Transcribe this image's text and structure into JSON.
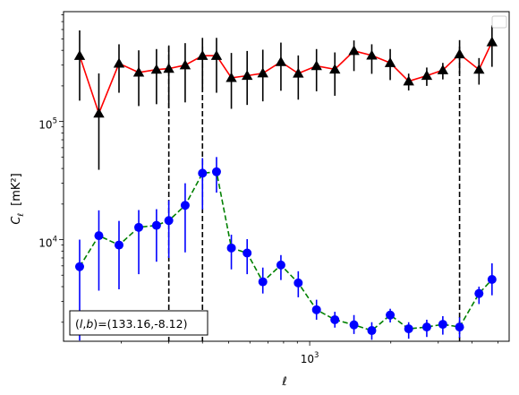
{
  "chart_data": {
    "type": "scatter",
    "xlabel": "ℓ",
    "ylabel_main": "C",
    "ylabel_sub": "ℓ",
    "ylabel_unit": "[mK²]",
    "x_scale": "log",
    "y_scale": "log",
    "xlim": [
      122,
      5500
    ],
    "ylim": [
      1380,
      850000
    ],
    "x_tick_labels": [
      {
        "value": 1000,
        "base": "10",
        "exp": "3"
      }
    ],
    "y_tick_labels": [
      {
        "value": 10000,
        "base": "10",
        "exp": "4"
      },
      {
        "value": 100000,
        "base": "10",
        "exp": "5"
      }
    ],
    "annotation": "(l, b)=(133.16,-8.12)",
    "annotation_parts": {
      "open": "(",
      "l": "l",
      "comma": ",",
      "b": "b",
      "close": ")",
      "value": "=(133.16,-8.12)"
    },
    "annotation_position": "bottom-left",
    "legend": "top-right, empty",
    "vlines": [
      300,
      400,
      3600
    ],
    "x": [
      140,
      165,
      196,
      232,
      270,
      300,
      345,
      400,
      451,
      512,
      586,
      670,
      782,
      907,
      1060,
      1240,
      1460,
      1700,
      1990,
      2330,
      2720,
      3120,
      3600,
      4250,
      4750
    ],
    "series": [
      {
        "color": "#ff0000",
        "marker_color": "#000000",
        "marker": "triangle",
        "line": "solid",
        "values": [
          360000,
          117000,
          310000,
          260000,
          275000,
          280000,
          300000,
          360000,
          360000,
          234000,
          244000,
          256000,
          319000,
          255000,
          295000,
          276000,
          396000,
          362000,
          313000,
          219000,
          244000,
          272000,
          371000,
          275000,
          470000
        ],
        "err_low": [
          150000,
          39000,
          175000,
          135000,
          140000,
          130000,
          145000,
          185000,
          175000,
          128000,
          138000,
          148000,
          182000,
          153000,
          180000,
          165000,
          267000,
          253000,
          224000,
          183000,
          200000,
          227000,
          253000,
          205000,
          290000
        ],
        "err_high": [
          590000,
          255000,
          450000,
          400000,
          410000,
          440000,
          460000,
          510000,
          510000,
          380000,
          395000,
          405000,
          465000,
          362000,
          410000,
          384000,
          485000,
          450000,
          410000,
          254000,
          286000,
          313000,
          488000,
          344000,
          650000
        ]
      },
      {
        "color": "#008000",
        "marker_color": "#0000ff",
        "marker": "circle",
        "line": "dashed",
        "values": [
          5900,
          10800,
          9000,
          12700,
          13200,
          14500,
          19500,
          36500,
          37500,
          8500,
          7700,
          4400,
          6100,
          4300,
          2550,
          2100,
          1900,
          1700,
          2300,
          1760,
          1820,
          1920,
          1820,
          3500,
          4600
        ],
        "err_low": [
          1400,
          3700,
          3800,
          5100,
          6500,
          7000,
          7800,
          18000,
          25000,
          5600,
          5100,
          3500,
          4550,
          3250,
          2100,
          1800,
          1590,
          1420,
          1990,
          1450,
          1500,
          1570,
          1480,
          2850,
          3380
        ],
        "err_high": [
          10000,
          17700,
          14400,
          17800,
          18100,
          21500,
          30000,
          49000,
          50000,
          11000,
          10100,
          5800,
          7400,
          5400,
          3100,
          2450,
          2300,
          2000,
          2600,
          2000,
          2100,
          2250,
          2200,
          4000,
          6300
        ]
      }
    ]
  }
}
